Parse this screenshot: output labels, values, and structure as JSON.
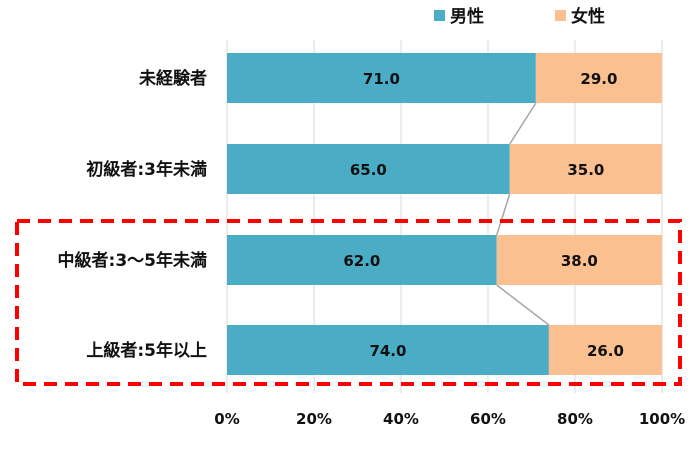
{
  "chart_data": {
    "type": "bar",
    "orientation": "horizontal",
    "stacked": true,
    "percent_stacked": true,
    "categories": [
      "未経験者",
      "初級者:3年未満",
      "中級者:3～5年未満",
      "上級者:5年以上"
    ],
    "series": [
      {
        "name": "男性",
        "values": [
          71.0,
          65.0,
          62.0,
          74.0
        ],
        "labels": [
          "71.0",
          "65.0",
          "62.0",
          "74.0"
        ],
        "color": "#4bacc6"
      },
      {
        "name": "女性",
        "values": [
          29.0,
          35.0,
          38.0,
          26.0
        ],
        "labels": [
          "29.0",
          "35.0",
          "38.0",
          "26.0"
        ],
        "color": "#fac090"
      }
    ],
    "x_ticks": [
      "0%",
      "20%",
      "40%",
      "60%",
      "80%",
      "100%"
    ],
    "xlim": [
      0,
      100
    ],
    "grid": true,
    "series_lines": true,
    "legend_position": "top-right",
    "highlight": {
      "categories": [
        "中級者:3～5年未満",
        "上級者:5年以上"
      ],
      "style": "red dashed box"
    }
  },
  "colors": {
    "grid": "#d9d9d9",
    "series_line": "#a6a6a6",
    "highlight": "#ff0000"
  }
}
